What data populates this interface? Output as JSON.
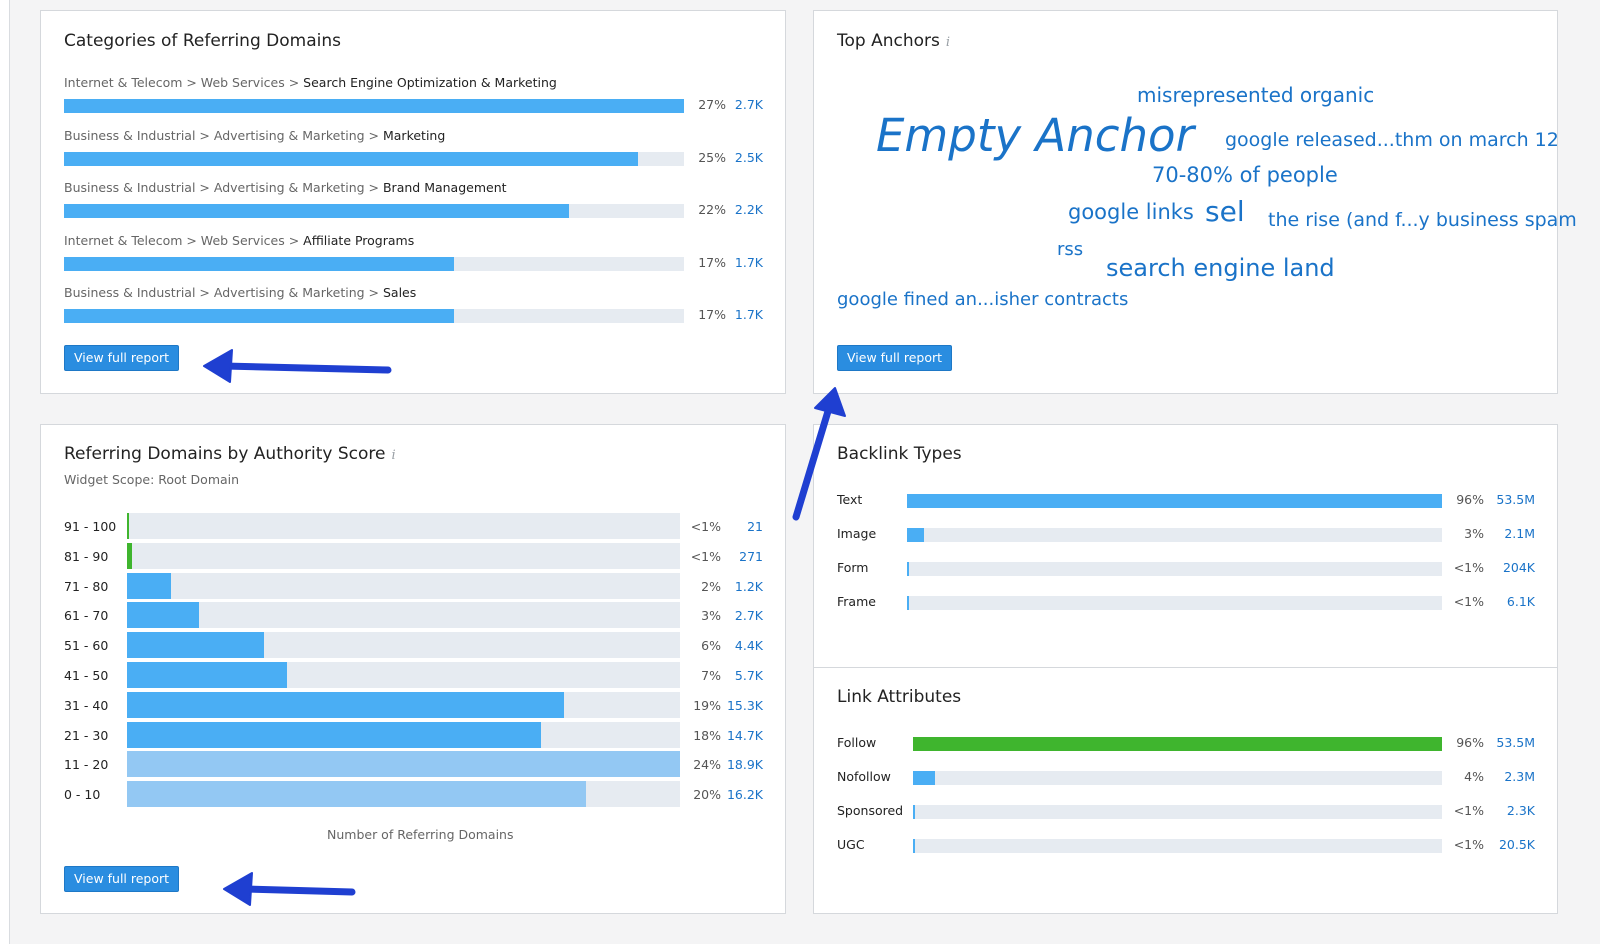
{
  "categories": {
    "title": "Categories of Referring Domains",
    "separator": " > ",
    "items": [
      {
        "path": [
          "Internet & Telecom",
          "Web Services"
        ],
        "leaf": "Search Engine Optimization & Marketing",
        "percent_value": 27,
        "percent": "27%",
        "count": "2.7K"
      },
      {
        "path": [
          "Business & Industrial",
          "Advertising & Marketing"
        ],
        "leaf": "Marketing",
        "percent_value": 25,
        "percent": "25%",
        "count": "2.5K"
      },
      {
        "path": [
          "Business & Industrial",
          "Advertising & Marketing"
        ],
        "leaf": "Brand Management",
        "percent_value": 22,
        "percent": "22%",
        "count": "2.2K"
      },
      {
        "path": [
          "Internet & Telecom",
          "Web Services"
        ],
        "leaf": "Affiliate Programs",
        "percent_value": 17,
        "percent": "17%",
        "count": "1.7K"
      },
      {
        "path": [
          "Business & Industrial",
          "Advertising & Marketing"
        ],
        "leaf": "Sales",
        "percent_value": 17,
        "percent": "17%",
        "count": "1.7K"
      }
    ],
    "button_label": "View full report"
  },
  "top_anchors": {
    "title": "Top Anchors",
    "info_icon": "i",
    "anchors": [
      "misrepresented organic",
      "Empty Anchor",
      "google released...thm on march 12",
      "70-80% of people",
      "google links",
      "sel",
      "the rise (and f...y business spam",
      "rss",
      "search engine land",
      "google fined an...isher contracts"
    ],
    "button_label": "View full report"
  },
  "authority": {
    "title": "Referring Domains by Authority Score",
    "info_icon": "i",
    "scope": "Widget Scope: Root Domain",
    "axis_caption": "Number of Referring Domains",
    "button_label": "View full report",
    "rows": [
      {
        "range": "91 - 100",
        "share": 0.003,
        "percent": "<1%",
        "count": "21",
        "color": "#3fb52e"
      },
      {
        "range": "81 - 90",
        "share": 0.009,
        "percent": "<1%",
        "count": "271",
        "color": "#3fb52e"
      },
      {
        "range": "71 - 80",
        "share": 0.08,
        "percent": "2%",
        "count": "1.2K",
        "color": "#4aaef4"
      },
      {
        "range": "61 - 70",
        "share": 0.13,
        "percent": "3%",
        "count": "2.7K",
        "color": "#4aaef4"
      },
      {
        "range": "51 - 60",
        "share": 0.248,
        "percent": "6%",
        "count": "4.4K",
        "color": "#4aaef4"
      },
      {
        "range": "41 - 50",
        "share": 0.289,
        "percent": "7%",
        "count": "5.7K",
        "color": "#4aaef4"
      },
      {
        "range": "31 - 40",
        "share": 0.79,
        "percent": "19%",
        "count": "15.3K",
        "color": "#4aaef4"
      },
      {
        "range": "21 - 30",
        "share": 0.748,
        "percent": "18%",
        "count": "14.7K",
        "color": "#4aaef4"
      },
      {
        "range": "11 - 20",
        "share": 1.0,
        "percent": "24%",
        "count": "18.9K",
        "color": "#93c8f3"
      },
      {
        "range": "0 - 10",
        "share": 0.83,
        "percent": "20%",
        "count": "16.2K",
        "color": "#93c8f3"
      }
    ]
  },
  "backlink_types": {
    "title": "Backlink Types",
    "rows": [
      {
        "label": "Text",
        "percent_value": 96,
        "percent": "96%",
        "count": "53.5M"
      },
      {
        "label": "Image",
        "percent_value": 3,
        "percent": "3%",
        "count": "2.1M"
      },
      {
        "label": "Form",
        "percent_value": 0.4,
        "percent": "<1%",
        "count": "204K"
      },
      {
        "label": "Frame",
        "percent_value": 0.4,
        "percent": "<1%",
        "count": "6.1K"
      }
    ]
  },
  "link_attributes": {
    "title": "Link Attributes",
    "rows": [
      {
        "label": "Follow",
        "percent_value": 96,
        "percent": "96%",
        "count": "53.5M",
        "color": "#3fb52e"
      },
      {
        "label": "Nofollow",
        "percent_value": 4,
        "percent": "4%",
        "count": "2.3M",
        "color": "#4aaef4"
      },
      {
        "label": "Sponsored",
        "percent_value": 0.4,
        "percent": "<1%",
        "count": "2.3K",
        "color": "#4aaef4"
      },
      {
        "label": "UGC",
        "percent_value": 0.4,
        "percent": "<1%",
        "count": "20.5K",
        "color": "#4aaef4"
      }
    ]
  },
  "colors": {
    "bar_blue": "#4aaef4",
    "bar_light": "#93c8f3",
    "bar_green": "#3fb52e",
    "track": "#e6ebf1",
    "link": "#1a73c8",
    "button": "#2a8de0",
    "annotation_arrow": "#1f3fd1"
  }
}
